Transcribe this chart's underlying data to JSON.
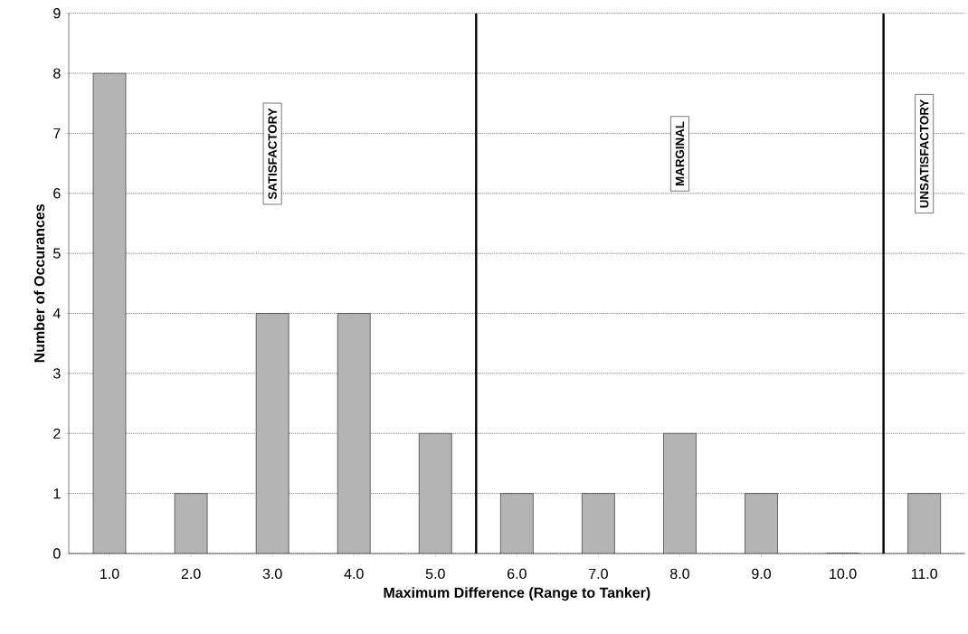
{
  "chart_data": {
    "type": "bar",
    "xlabel": "Maximum Difference (Range to Tanker)",
    "ylabel": "Number of Occurances",
    "x": [
      1,
      2,
      3,
      4,
      5,
      6,
      7,
      8,
      9,
      10,
      11
    ],
    "values": [
      8,
      1,
      4,
      4,
      2,
      1,
      1,
      2,
      1,
      0,
      1
    ],
    "color": "#b4b4b4",
    "xlim": [
      0.5,
      11.5
    ],
    "xticks": [
      {
        "value": 1,
        "label": "1.0"
      },
      {
        "value": 2,
        "label": "2.0"
      },
      {
        "value": 3,
        "label": "3.0"
      },
      {
        "value": 4,
        "label": "4.0"
      },
      {
        "value": 5,
        "label": "5.0"
      },
      {
        "value": 6,
        "label": "6.0"
      },
      {
        "value": 7,
        "label": "7.0"
      },
      {
        "value": 8,
        "label": "8.0"
      },
      {
        "value": 9,
        "label": "9.0"
      },
      {
        "value": 10,
        "label": "10.0"
      },
      {
        "value": 11,
        "label": "11.0"
      }
    ],
    "ylim": [
      0,
      9
    ],
    "yticks": [
      0,
      1,
      2,
      3,
      4,
      5,
      6,
      7,
      8,
      9
    ],
    "grid": "y",
    "ref_lines": [
      {
        "axis": "x",
        "value": 5.5,
        "color": "#000000"
      },
      {
        "axis": "x",
        "value": 10.5,
        "color": "#000000"
      }
    ],
    "annotations": [
      "SATISFACTORY",
      "MARGINAL",
      "UNSATISFACTORY"
    ]
  }
}
